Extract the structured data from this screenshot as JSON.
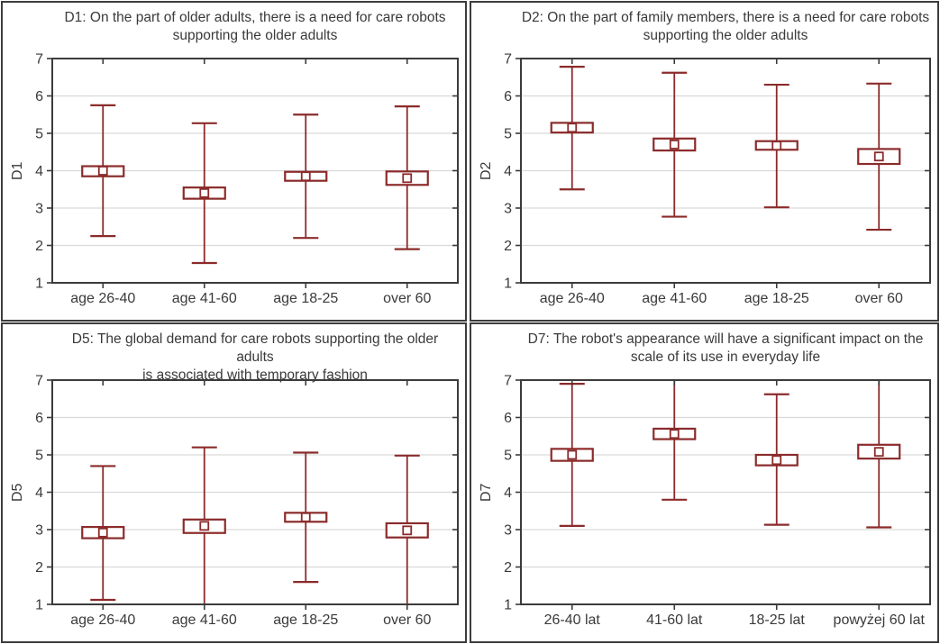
{
  "colors": {
    "series_maroon": "#8B2B2B",
    "frame": "#3b3b3b",
    "grid": "#d9d9d9",
    "text": "#3a3a3a",
    "background": "#ffffff"
  },
  "chart_data": [
    {
      "type": "box",
      "id": "D1",
      "title_line1": "D1: On the part of older adults, there is a need for care robots",
      "title_line2": "supporting the older adults",
      "ylabel": "D1",
      "ylim": [
        1,
        7
      ],
      "yticks": [
        1,
        2,
        3,
        4,
        5,
        6,
        7
      ],
      "grid": "horizontal-light",
      "legend": "none",
      "marker": "mean-square, box, min-max whiskers",
      "categories": [
        "age 26-40",
        "age 41-60",
        "age 18-25",
        "over 60"
      ],
      "series": [
        {
          "category": "age 26-40",
          "mean": 4.0,
          "box_low": 3.85,
          "box_high": 4.12,
          "whisker_low": 2.25,
          "whisker_high": 5.75,
          "whisker_low_cap": true,
          "whisker_high_cap": true
        },
        {
          "category": "age 41-60",
          "mean": 3.4,
          "box_low": 3.25,
          "box_high": 3.55,
          "whisker_low": 1.53,
          "whisker_high": 5.27,
          "whisker_low_cap": true,
          "whisker_high_cap": true
        },
        {
          "category": "age 18-25",
          "mean": 3.85,
          "box_low": 3.73,
          "box_high": 3.97,
          "whisker_low": 2.2,
          "whisker_high": 5.5,
          "whisker_low_cap": true,
          "whisker_high_cap": true
        },
        {
          "category": "over 60",
          "mean": 3.8,
          "box_low": 3.62,
          "box_high": 3.98,
          "whisker_low": 1.9,
          "whisker_high": 5.72,
          "whisker_low_cap": true,
          "whisker_high_cap": true
        }
      ]
    },
    {
      "type": "box",
      "id": "D2",
      "title_line1": "D2: On the part of family members, there is a need for care robots",
      "title_line2": "supporting the older adults",
      "ylabel": "D2",
      "ylim": [
        1,
        7
      ],
      "yticks": [
        1,
        2,
        3,
        4,
        5,
        6,
        7
      ],
      "grid": "horizontal-light",
      "legend": "none",
      "marker": "mean-square, box, min-max whiskers",
      "categories": [
        "age 26-40",
        "age 41-60",
        "age 18-25",
        "over 60"
      ],
      "series": [
        {
          "category": "age 26-40",
          "mean": 5.15,
          "box_low": 5.02,
          "box_high": 5.28,
          "whisker_low": 3.5,
          "whisker_high": 6.78,
          "whisker_low_cap": true,
          "whisker_high_cap": true
        },
        {
          "category": "age 41-60",
          "mean": 4.7,
          "box_low": 4.54,
          "box_high": 4.86,
          "whisker_low": 2.77,
          "whisker_high": 6.62,
          "whisker_low_cap": true,
          "whisker_high_cap": true
        },
        {
          "category": "age 18-25",
          "mean": 4.67,
          "box_low": 4.56,
          "box_high": 4.79,
          "whisker_low": 3.02,
          "whisker_high": 6.3,
          "whisker_low_cap": true,
          "whisker_high_cap": true
        },
        {
          "category": "over 60",
          "mean": 4.38,
          "box_low": 4.18,
          "box_high": 4.58,
          "whisker_low": 2.42,
          "whisker_high": 6.33,
          "whisker_low_cap": true,
          "whisker_high_cap": true
        }
      ]
    },
    {
      "type": "box",
      "id": "D5",
      "title_line1": "D5: The global demand for care robots supporting the older adults",
      "title_line2": "is associated with temporary fashion",
      "ylabel": "D5",
      "ylim": [
        1,
        7
      ],
      "yticks": [
        1,
        2,
        3,
        4,
        5,
        6,
        7
      ],
      "grid": "horizontal-light",
      "legend": "none",
      "marker": "mean-square, box, min-max whiskers",
      "categories": [
        "age 26-40",
        "age 41-60",
        "age 18-25",
        "over 60"
      ],
      "series": [
        {
          "category": "age 26-40",
          "mean": 2.92,
          "box_low": 2.77,
          "box_high": 3.07,
          "whisker_low": 1.12,
          "whisker_high": 4.7,
          "whisker_low_cap": true,
          "whisker_high_cap": true
        },
        {
          "category": "age 41-60",
          "mean": 3.1,
          "box_low": 2.91,
          "box_high": 3.27,
          "whisker_low": 1.0,
          "whisker_high": 5.2,
          "whisker_low_cap": false,
          "whisker_high_cap": true
        },
        {
          "category": "age 18-25",
          "mean": 3.33,
          "box_low": 3.21,
          "box_high": 3.45,
          "whisker_low": 1.6,
          "whisker_high": 5.06,
          "whisker_low_cap": true,
          "whisker_high_cap": true
        },
        {
          "category": "over 60",
          "mean": 2.98,
          "box_low": 2.79,
          "box_high": 3.17,
          "whisker_low": 1.0,
          "whisker_high": 4.98,
          "whisker_low_cap": false,
          "whisker_high_cap": true
        }
      ]
    },
    {
      "type": "box",
      "id": "D7",
      "title_line1": "D7: The robot's appearance will have a significant impact on the",
      "title_line2": "scale of its use in everyday life",
      "ylabel": "D7",
      "ylim": [
        1,
        7
      ],
      "yticks": [
        1,
        2,
        3,
        4,
        5,
        6,
        7
      ],
      "grid": "horizontal-light",
      "legend": "none",
      "marker": "mean-square, box, min-max whiskers",
      "categories": [
        "26-40 lat",
        "41-60 lat",
        "18-25 lat",
        "powyżej 60 lat"
      ],
      "series": [
        {
          "category": "26-40 lat",
          "mean": 5.0,
          "box_low": 4.84,
          "box_high": 5.16,
          "whisker_low": 3.1,
          "whisker_high": 6.9,
          "whisker_low_cap": true,
          "whisker_high_cap": true
        },
        {
          "category": "41-60 lat",
          "mean": 5.56,
          "box_low": 5.42,
          "box_high": 5.7,
          "whisker_low": 3.8,
          "whisker_high": 7.0,
          "whisker_low_cap": true,
          "whisker_high_cap": false
        },
        {
          "category": "18-25 lat",
          "mean": 4.86,
          "box_low": 4.72,
          "box_high": 5.0,
          "whisker_low": 3.13,
          "whisker_high": 6.62,
          "whisker_low_cap": true,
          "whisker_high_cap": true
        },
        {
          "category": "powyżej 60 lat",
          "mean": 5.08,
          "box_low": 4.9,
          "box_high": 5.27,
          "whisker_low": 3.06,
          "whisker_high": 7.0,
          "whisker_low_cap": true,
          "whisker_high_cap": false
        }
      ]
    }
  ]
}
